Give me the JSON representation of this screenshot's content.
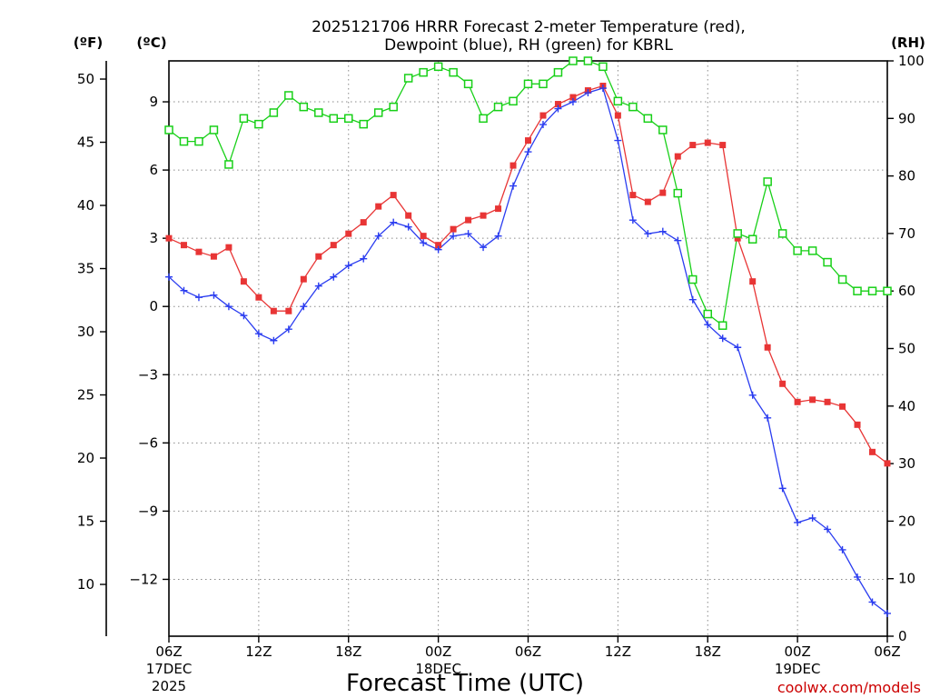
{
  "chart_data": {
    "type": "line",
    "title_line1": "2025121706 HRRR Forecast 2-meter Temperature (red),",
    "title_line2": "Dewpoint (blue), RH (green) for KBRL",
    "xlabel": "Forecast Time (UTC)",
    "unit_f": "(ºF)",
    "unit_c": "(ºC)",
    "unit_rh": "(RH)",
    "credit": "coolwx.com/models",
    "x_hours": [
      0,
      1,
      2,
      3,
      4,
      5,
      6,
      7,
      8,
      9,
      10,
      11,
      12,
      13,
      14,
      15,
      16,
      17,
      18,
      19,
      20,
      21,
      22,
      23,
      24,
      25,
      26,
      27,
      28,
      29,
      30,
      31,
      32,
      33,
      34,
      35,
      36,
      37,
      38,
      39,
      40,
      41,
      42,
      43,
      44,
      45,
      46,
      47,
      48
    ],
    "x_range": [
      0,
      48
    ],
    "x_ticks": [
      {
        "hour": 0,
        "label": "06Z",
        "sub1": "17DEC",
        "sub2": "2025"
      },
      {
        "hour": 6,
        "label": "12Z",
        "sub1": "",
        "sub2": ""
      },
      {
        "hour": 12,
        "label": "18Z",
        "sub1": "",
        "sub2": ""
      },
      {
        "hour": 18,
        "label": "00Z",
        "sub1": "18DEC",
        "sub2": ""
      },
      {
        "hour": 24,
        "label": "06Z",
        "sub1": "",
        "sub2": ""
      },
      {
        "hour": 30,
        "label": "12Z",
        "sub1": "",
        "sub2": ""
      },
      {
        "hour": 36,
        "label": "18Z",
        "sub1": "",
        "sub2": ""
      },
      {
        "hour": 42,
        "label": "00Z",
        "sub1": "19DEC",
        "sub2": ""
      },
      {
        "hour": 48,
        "label": "06Z",
        "sub1": "",
        "sub2": ""
      }
    ],
    "y_c_range": [
      -14.5,
      10.8
    ],
    "y_c_ticks": [
      {
        "value": 9,
        "label": "9"
      },
      {
        "value": 6,
        "label": "6"
      },
      {
        "value": 3,
        "label": "3"
      },
      {
        "value": 0,
        "label": "0"
      },
      {
        "value": -3,
        "label": "−3"
      },
      {
        "value": -6,
        "label": "−6"
      },
      {
        "value": -9,
        "label": "−9"
      },
      {
        "value": -12,
        "label": "−12"
      }
    ],
    "y_f_ticks": [
      {
        "value": 50,
        "label": "50"
      },
      {
        "value": 45,
        "label": "45"
      },
      {
        "value": 40,
        "label": "40"
      },
      {
        "value": 35,
        "label": "35"
      },
      {
        "value": 30,
        "label": "30"
      },
      {
        "value": 25,
        "label": "25"
      },
      {
        "value": 20,
        "label": "20"
      },
      {
        "value": 15,
        "label": "15"
      },
      {
        "value": 10,
        "label": "10"
      }
    ],
    "y_rh_range": [
      0,
      100
    ],
    "y_rh_ticks": [
      {
        "value": 100,
        "label": "100"
      },
      {
        "value": 90,
        "label": "90"
      },
      {
        "value": 80,
        "label": "80"
      },
      {
        "value": 70,
        "label": "70"
      },
      {
        "value": 60,
        "label": "60"
      },
      {
        "value": 50,
        "label": "50"
      },
      {
        "value": 40,
        "label": "40"
      },
      {
        "value": 30,
        "label": "30"
      },
      {
        "value": 20,
        "label": "20"
      },
      {
        "value": 10,
        "label": "10"
      },
      {
        "value": 0,
        "label": "0"
      }
    ],
    "grid": true,
    "series": [
      {
        "name": "2-meter Temperature",
        "unit": "C",
        "color": "#e83535",
        "marker": "filled-square",
        "values": [
          3.0,
          2.7,
          2.4,
          2.2,
          2.6,
          1.1,
          0.4,
          -0.2,
          -0.2,
          1.2,
          2.2,
          2.7,
          3.2,
          3.7,
          4.4,
          4.9,
          4.0,
          3.1,
          2.7,
          3.4,
          3.8,
          4.0,
          4.3,
          6.2,
          7.3,
          8.4,
          8.9,
          9.2,
          9.5,
          9.7,
          8.4,
          4.9,
          4.6,
          5.0,
          6.6,
          7.1,
          7.2,
          7.1,
          3.0,
          1.1,
          -1.8,
          -3.4,
          -4.2,
          -4.1,
          -4.2,
          -4.4,
          -5.2,
          -6.4,
          -6.9
        ]
      },
      {
        "name": "Dewpoint",
        "unit": "C",
        "color": "#2a3cf0",
        "marker": "plus",
        "values": [
          1.3,
          0.7,
          0.4,
          0.5,
          0.0,
          -0.4,
          -1.2,
          -1.5,
          -1.0,
          0.0,
          0.9,
          1.3,
          1.8,
          2.1,
          3.1,
          3.7,
          3.5,
          2.8,
          2.5,
          3.1,
          3.2,
          2.6,
          3.1,
          5.3,
          6.8,
          8.0,
          8.7,
          9.0,
          9.4,
          9.6,
          7.3,
          3.8,
          3.2,
          3.3,
          2.9,
          0.3,
          -0.8,
          -1.4,
          -1.8,
          -3.9,
          -4.9,
          -8.0,
          -9.5,
          -9.3,
          -9.8,
          -10.7,
          -11.9,
          -13.0,
          -13.5
        ]
      },
      {
        "name": "RH",
        "unit": "%",
        "color": "#18d018",
        "marker": "open-square",
        "values": [
          88,
          86,
          86,
          88,
          82,
          90,
          89,
          91,
          94,
          92,
          91,
          90,
          90,
          89,
          91,
          92,
          97,
          98,
          99,
          98,
          96,
          90,
          92,
          93,
          96,
          96,
          98,
          100,
          100,
          99,
          93,
          92,
          90,
          88,
          77,
          62,
          56,
          54,
          70,
          69,
          79,
          70,
          67,
          67,
          65,
          62,
          60,
          60,
          60
        ]
      }
    ]
  }
}
